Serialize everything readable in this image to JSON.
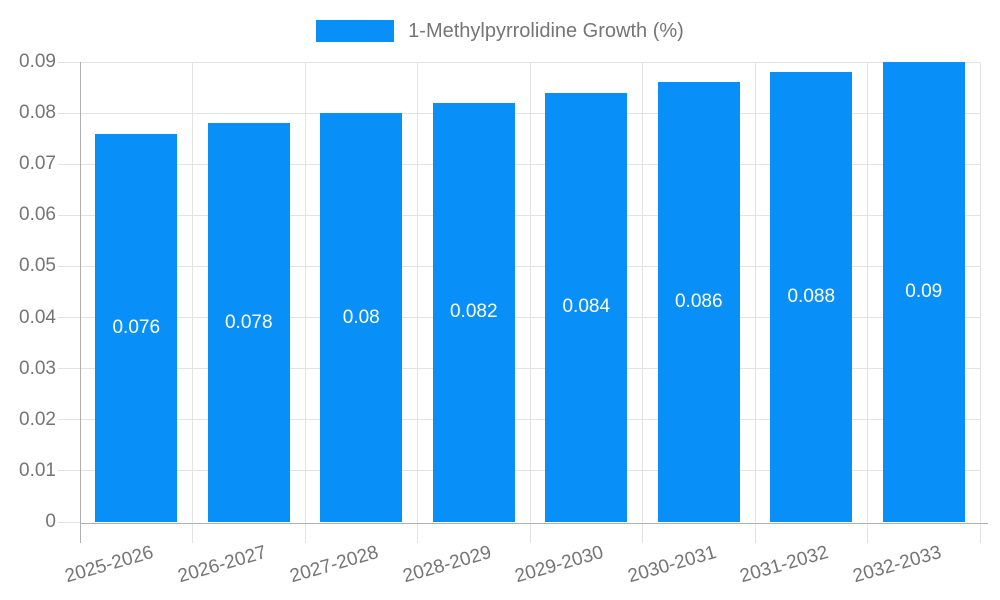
{
  "legend": {
    "label": "1-Methylpyrrolidine Growth (%)"
  },
  "colors": {
    "bar": "#0890f8",
    "grid": "#e3e3e3",
    "axis": "#b0b0b0",
    "text": "#757575",
    "value_label": "#ffffff",
    "background": "#ffffff"
  },
  "chart_data": {
    "type": "bar",
    "title": "1-Methylpyrrolidine Growth (%)",
    "categories": [
      "2025-2026",
      "2026-2027",
      "2027-2028",
      "2028-2029",
      "2029-2030",
      "2030-2031",
      "2031-2032",
      "2032-2033"
    ],
    "values": [
      0.076,
      0.078,
      0.08,
      0.082,
      0.084,
      0.086,
      0.088,
      0.09
    ],
    "bar_labels": [
      "0.076",
      "0.078",
      "0.08",
      "0.082",
      "0.084",
      "0.086",
      "0.088",
      "0.09"
    ],
    "xlabel": "",
    "ylabel": "",
    "ylim": [
      0,
      0.09
    ],
    "yticks": [
      0,
      0.01,
      0.02,
      0.03,
      0.04,
      0.05,
      0.06,
      0.07,
      0.08,
      0.09
    ],
    "ytick_labels": [
      "0",
      "0.01",
      "0.02",
      "0.03",
      "0.04",
      "0.05",
      "0.06",
      "0.07",
      "0.08",
      "0.09"
    ],
    "grid": true,
    "legend_position": "top-center",
    "x_label_rotation_deg": -16
  }
}
